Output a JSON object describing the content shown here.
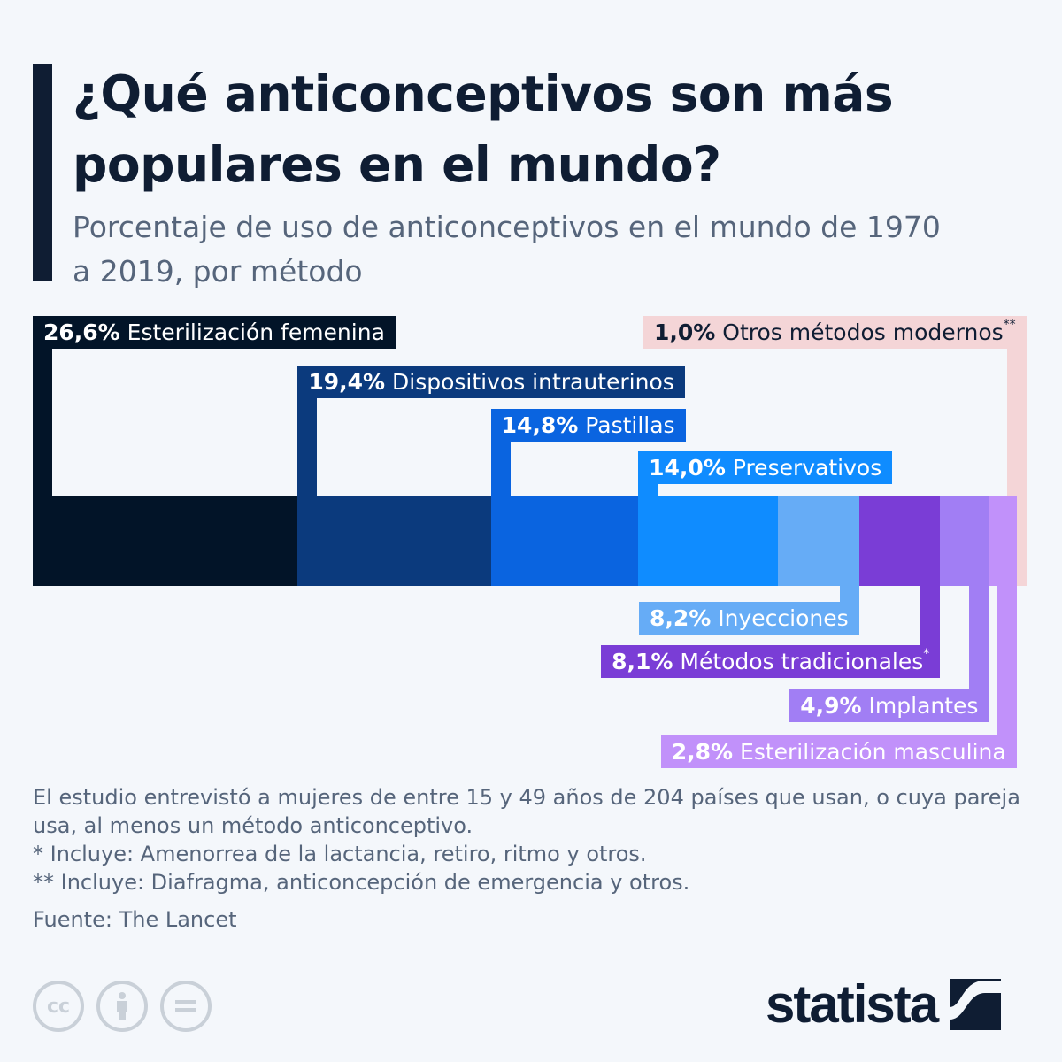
{
  "title": "¿Qué anticonceptivos son más populares en el mundo?",
  "subtitle": "Porcentaje de uso de anticonceptivos en el mundo de 1970 a 2019, por método",
  "chart_data": {
    "type": "bar",
    "orientation": "stacked-horizontal",
    "unit": "%",
    "categories": [
      "Esterilización femenina",
      "Dispositivos intrauterinos",
      "Pastillas",
      "Preservativos",
      "Inyecciones",
      "Métodos tradicionales",
      "Implantes",
      "Esterilización masculina",
      "Otros métodos modernos"
    ],
    "values": [
      26.6,
      19.4,
      14.8,
      14.0,
      8.2,
      8.1,
      4.9,
      2.8,
      1.0
    ],
    "value_labels": [
      "26,6%",
      "19,4%",
      "14,8%",
      "14,0%",
      "8,2%",
      "8,1%",
      "4,9%",
      "2,8%",
      "1,0%"
    ],
    "footnote_marks": [
      "",
      "",
      "",
      "",
      "",
      "*",
      "",
      "",
      "**"
    ],
    "colors": [
      "#021428",
      "#0b3a7d",
      "#0a64e0",
      "#0f8cff",
      "#66acf6",
      "#7a3dd6",
      "#a17ef4",
      "#c191fa",
      "#f4d5d7"
    ]
  },
  "notes": {
    "study": "El estudio entrevistó a mujeres de entre 15 y 49 años de 204 países que usan, o cuya pareja usa, al menos un método anticonceptivo.",
    "note1": "*   Incluye: Amenorrea de la lactancia, retiro, ritmo y otros.",
    "note2": "** Incluye: Diafragma, anticoncepción de emergencia y otros.",
    "source": "Fuente: The Lancet"
  },
  "license_icons": [
    "cc-icon",
    "attribution-icon",
    "no-derivatives-icon"
  ],
  "logo": "statista"
}
